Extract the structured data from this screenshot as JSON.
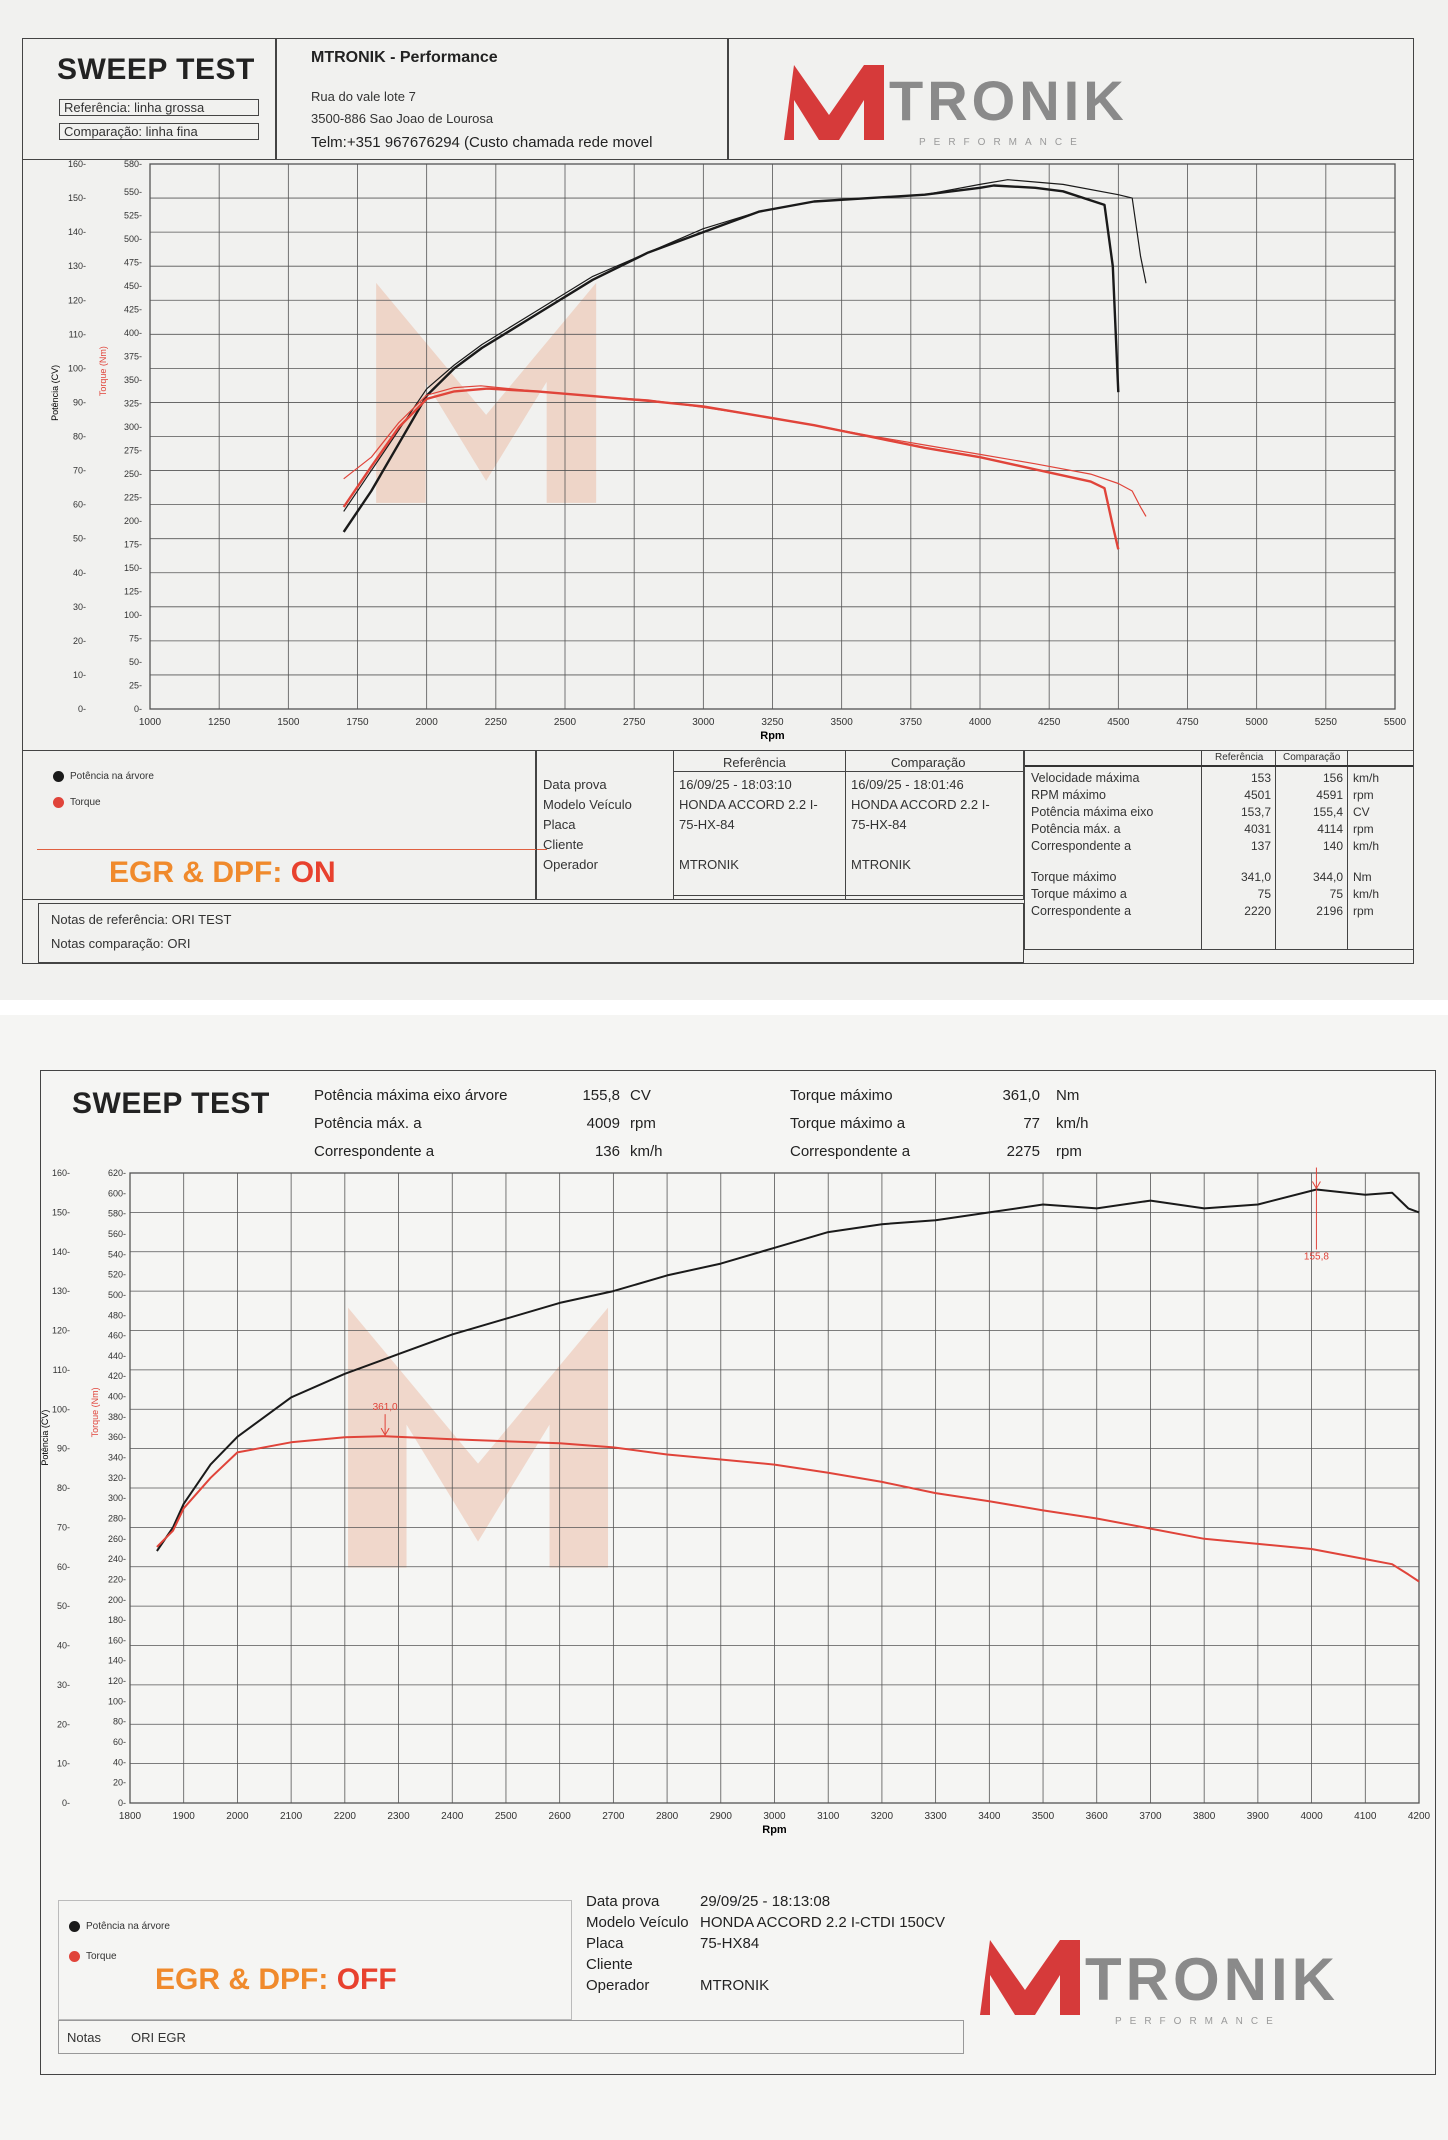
{
  "sheet1": {
    "title": "SWEEP TEST",
    "ref_label": "Referência: linha grossa",
    "cmp_label": "Comparação: linha fina",
    "company": "MTRONIK - Performance",
    "address1": "Rua do vale lote 7",
    "address2": "3500-886 Sao Joao de Lourosa",
    "phone": "Telm:+351 967676294 (Custo chamada rede movel",
    "logo_text": "TRONIK",
    "logo_sub": "PERFORMANCE",
    "legend_power": "Potência na árvore",
    "legend_torque": "Torque",
    "annotation_prefix": "EGR & DPF:",
    "annotation_state": "ON",
    "info_headers": [
      "Referência",
      "Comparação"
    ],
    "info_rows": [
      {
        "label": "Data prova",
        "ref": "16/09/25 - 18:03:10",
        "cmp": "16/09/25 - 18:01:46"
      },
      {
        "label": "Modelo Veículo",
        "ref": "HONDA ACCORD 2.2 I-",
        "cmp": "HONDA ACCORD 2.2 I-"
      },
      {
        "label": "Placa",
        "ref": "75-HX-84",
        "cmp": "75-HX-84"
      },
      {
        "label": "Cliente",
        "ref": "",
        "cmp": ""
      },
      {
        "label": "Operador",
        "ref": "MTRONIK",
        "cmp": "MTRONIK"
      }
    ],
    "stats_headers": [
      "Referência",
      "Comparação"
    ],
    "stats_rows": [
      {
        "label": "Velocidade máxima",
        "ref": "153",
        "cmp": "156",
        "unit": "km/h"
      },
      {
        "label": "RPM máximo",
        "ref": "4501",
        "cmp": "4591",
        "unit": "rpm"
      },
      {
        "label": "Potência máxima eixo",
        "ref": "153,7",
        "cmp": "155,4",
        "unit": "CV"
      },
      {
        "label": "Potência máx. a",
        "ref": "4031",
        "cmp": "4114",
        "unit": "rpm"
      },
      {
        "label": "Correspondente a",
        "ref": "137",
        "cmp": "140",
        "unit": "km/h"
      },
      {
        "label": "Torque máximo",
        "ref": "341,0",
        "cmp": "344,0",
        "unit": "Nm"
      },
      {
        "label": "Torque máximo a",
        "ref": "75",
        "cmp": "75",
        "unit": "km/h"
      },
      {
        "label": "Correspondente a",
        "ref": "2220",
        "cmp": "2196",
        "unit": "rpm"
      }
    ],
    "notes_ref": "Notas de referência: ORI TEST",
    "notes_cmp": "Notas comparação:  ORI"
  },
  "sheet2": {
    "title": "SWEEP TEST",
    "summary_left": [
      {
        "label": "Potência máxima eixo árvore",
        "value": "155,8",
        "unit": "CV"
      },
      {
        "label": "Potência máx. a",
        "value": "4009",
        "unit": "rpm"
      },
      {
        "label": "Correspondente a",
        "value": "136",
        "unit": "km/h"
      }
    ],
    "summary_right": [
      {
        "label": "Torque máximo",
        "value": "361,0",
        "unit": "Nm"
      },
      {
        "label": "Torque máximo a",
        "value": "77",
        "unit": "km/h"
      },
      {
        "label": "Correspondente a",
        "value": "2275",
        "unit": "rpm"
      }
    ],
    "legend_power": "Potência na árvore",
    "legend_torque": "Torque",
    "annotation_prefix": "EGR & DPF:",
    "annotation_state": "OFF",
    "info_rows": [
      {
        "label": "Data prova",
        "value": "29/09/25 - 18:13:08"
      },
      {
        "label": "Modelo Veículo",
        "value": "HONDA ACCORD 2.2 I-CTDI 150CV"
      },
      {
        "label": "Placa",
        "value": "75-HX84"
      },
      {
        "label": "Cliente",
        "value": ""
      },
      {
        "label": "Operador",
        "value": "MTRONIK"
      }
    ],
    "notes_label": "Notas",
    "notes_value": "ORI EGR",
    "logo_text": "TRONIK",
    "logo_sub": "PERFORMANCE"
  },
  "colors": {
    "power": "#1a1a1a",
    "torque": "#e0443a",
    "accent_orange": "#f08a2c",
    "accent_red": "#e8412e",
    "logo_red": "#d63a3a"
  },
  "chart_data": [
    {
      "type": "line",
      "id": "sweep1",
      "xlabel": "Rpm",
      "ylabel_left": "Potência (CV)",
      "ylabel_right": "Torque (Nm)",
      "xlim": [
        1000,
        5500
      ],
      "x_ticks": [
        1000,
        1250,
        1500,
        1750,
        2000,
        2250,
        2500,
        2750,
        3000,
        3250,
        3500,
        3750,
        4000,
        4250,
        4500,
        4750,
        5000,
        5250,
        5500
      ],
      "power_lim": [
        0,
        160
      ],
      "power_ticks": [
        0,
        10,
        20,
        30,
        40,
        50,
        60,
        70,
        80,
        90,
        100,
        110,
        120,
        130,
        140,
        150,
        160
      ],
      "torque_lim": [
        0,
        580
      ],
      "torque_ticks": [
        0,
        25,
        50,
        75,
        100,
        125,
        150,
        175,
        200,
        225,
        250,
        275,
        300,
        325,
        350,
        375,
        400,
        425,
        450,
        475,
        500,
        525,
        550,
        580
      ],
      "grid": true,
      "series": [
        {
          "name": "Potência na árvore",
          "style": "thick",
          "axis": "power",
          "color": "#1a1a1a",
          "x": [
            1700,
            1800,
            1900,
            2000,
            2100,
            2200,
            2400,
            2600,
            2800,
            3000,
            3200,
            3400,
            3600,
            3800,
            4000,
            4050,
            4200,
            4300,
            4450,
            4480,
            4500
          ],
          "y": [
            52,
            64,
            78,
            92,
            100,
            106,
            116,
            126,
            134,
            140,
            146,
            149,
            150,
            151,
            153,
            153.7,
            153,
            152,
            148,
            130,
            93
          ]
        },
        {
          "name": "Potência na árvore",
          "style": "thin",
          "axis": "power",
          "color": "#1a1a1a",
          "x": [
            1700,
            1800,
            1900,
            2000,
            2100,
            2200,
            2400,
            2600,
            2800,
            3000,
            3200,
            3400,
            3600,
            3800,
            4000,
            4100,
            4300,
            4500,
            4550,
            4580,
            4600
          ],
          "y": [
            58,
            70,
            82,
            94,
            101,
            107,
            117,
            127,
            134,
            141,
            146,
            149,
            150,
            151,
            154,
            155.4,
            154,
            151,
            150,
            133,
            125
          ]
        },
        {
          "name": "Torque",
          "style": "thick",
          "axis": "torque",
          "color": "#e0443a",
          "x": [
            1700,
            1800,
            1900,
            2000,
            2100,
            2220,
            2400,
            2600,
            2800,
            3000,
            3200,
            3400,
            3600,
            3800,
            4000,
            4200,
            4400,
            4450,
            4480,
            4500
          ],
          "y": [
            215,
            258,
            300,
            330,
            338,
            341,
            338,
            333,
            328,
            322,
            312,
            302,
            290,
            278,
            268,
            255,
            242,
            235,
            195,
            170
          ]
        },
        {
          "name": "Torque",
          "style": "thin",
          "axis": "torque",
          "color": "#e0443a",
          "x": [
            1700,
            1800,
            1900,
            2000,
            2100,
            2196,
            2400,
            2600,
            2800,
            3000,
            3200,
            3400,
            3600,
            3800,
            4000,
            4200,
            4400,
            4500,
            4550,
            4580,
            4600
          ],
          "y": [
            245,
            268,
            305,
            334,
            342,
            344,
            338,
            333,
            329,
            321,
            312,
            302,
            291,
            281,
            271,
            261,
            250,
            240,
            232,
            215,
            205
          ]
        }
      ]
    },
    {
      "type": "line",
      "id": "sweep2",
      "xlabel": "Rpm",
      "ylabel_left": "Potência (CV)",
      "ylabel_right": "Torque (Nm)",
      "xlim": [
        1800,
        4200
      ],
      "x_ticks": [
        1800,
        1900,
        2000,
        2100,
        2200,
        2300,
        2400,
        2500,
        2600,
        2700,
        2800,
        2900,
        3000,
        3100,
        3200,
        3300,
        3400,
        3500,
        3600,
        3700,
        3800,
        3900,
        4000,
        4100,
        4200
      ],
      "power_lim": [
        0,
        160
      ],
      "power_ticks": [
        0,
        10,
        20,
        30,
        40,
        50,
        60,
        70,
        80,
        90,
        100,
        110,
        120,
        130,
        140,
        150,
        160
      ],
      "torque_lim": [
        0,
        620
      ],
      "torque_ticks": [
        0,
        20,
        40,
        60,
        80,
        100,
        120,
        140,
        160,
        180,
        200,
        220,
        240,
        260,
        280,
        300,
        320,
        340,
        360,
        380,
        400,
        420,
        440,
        460,
        480,
        500,
        520,
        540,
        560,
        580,
        600,
        620
      ],
      "grid": true,
      "annotations": [
        {
          "text": "361,0",
          "x": 2275,
          "axis": "torque",
          "y": 361
        },
        {
          "text": "155,8",
          "x": 4009,
          "axis": "power",
          "y": 155.8
        }
      ],
      "series": [
        {
          "name": "Potência na árvore",
          "axis": "power",
          "color": "#1a1a1a",
          "x": [
            1850,
            1880,
            1900,
            1950,
            2000,
            2100,
            2200,
            2300,
            2400,
            2500,
            2600,
            2700,
            2800,
            2900,
            3000,
            3100,
            3200,
            3300,
            3400,
            3500,
            3600,
            3700,
            3800,
            3900,
            4009,
            4100,
            4150,
            4180,
            4200
          ],
          "y": [
            64,
            70,
            76,
            86,
            93,
            103,
            109,
            114,
            119,
            123,
            127,
            130,
            134,
            137,
            141,
            145,
            147,
            148,
            150,
            152,
            151,
            153,
            151,
            152,
            155.8,
            154.5,
            155,
            151,
            150
          ]
        },
        {
          "name": "Torque",
          "axis": "torque",
          "color": "#e0443a",
          "x": [
            1850,
            1880,
            1900,
            1950,
            2000,
            2100,
            2200,
            2275,
            2400,
            2500,
            2600,
            2700,
            2800,
            2900,
            3000,
            3100,
            3200,
            3300,
            3400,
            3500,
            3600,
            3700,
            3800,
            3900,
            4000,
            4100,
            4150,
            4180,
            4200
          ],
          "y": [
            252,
            268,
            290,
            320,
            345,
            355,
            360,
            361,
            358,
            356,
            354,
            350,
            343,
            338,
            333,
            325,
            316,
            305,
            297,
            288,
            280,
            270,
            260,
            255,
            250,
            240,
            235,
            225,
            218
          ]
        }
      ]
    }
  ]
}
